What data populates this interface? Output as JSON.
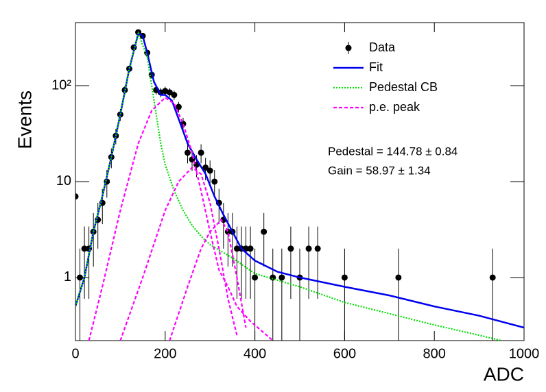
{
  "chart_data": {
    "type": "line",
    "x_label": "ADC",
    "y_label": "Events",
    "log_y": true,
    "xlim": [
      0,
      1000
    ],
    "ylim": [
      0.22,
      454
    ],
    "xticks": [
      0,
      200,
      400,
      600,
      800,
      1000
    ],
    "yticks": [
      1,
      10,
      {
        "value": 100,
        "label": "10²"
      }
    ],
    "annotations": [
      "Pedestal = 144.78 ± 0.84",
      "Gain = 58.97 ± 1.34"
    ],
    "series": [
      {
        "name": "Data",
        "color": "#000000",
        "style": "markers",
        "x": [
          0,
          10,
          20,
          30,
          40,
          50,
          60,
          70,
          80,
          90,
          100,
          110,
          120,
          130,
          140,
          150,
          160,
          170,
          180,
          190,
          200,
          210,
          220,
          230,
          240,
          250,
          260,
          270,
          280,
          290,
          300,
          310,
          320,
          330,
          340,
          350,
          360,
          370,
          380,
          390,
          400,
          420,
          440,
          460,
          480,
          500,
          520,
          540,
          600,
          720,
          930
        ],
        "values": [
          7,
          1,
          2,
          2,
          3,
          4,
          6,
          10,
          18,
          30,
          50,
          90,
          150,
          250,
          360,
          330,
          220,
          130,
          90,
          85,
          88,
          85,
          80,
          60,
          40,
          20,
          17,
          15,
          20,
          14,
          13,
          10,
          6,
          4,
          3,
          3,
          2,
          2,
          2,
          2,
          1,
          3,
          1,
          1,
          2,
          1,
          2,
          2,
          1,
          1,
          1
        ],
        "errors": [
          2.6,
          1,
          1.4,
          1.4,
          1.7,
          2,
          2.4,
          3.2,
          4.2,
          5.5,
          7.1,
          9.5,
          12.2,
          15.8,
          19,
          18.2,
          14.8,
          11.4,
          9.5,
          9.2,
          9.4,
          9.2,
          8.9,
          7.7,
          6.3,
          4.5,
          4.1,
          3.9,
          4.5,
          3.7,
          3.6,
          3.2,
          2.4,
          2,
          1.7,
          1.7,
          1.4,
          1.4,
          1.4,
          1.4,
          1,
          1.7,
          1,
          1,
          1.4,
          1,
          1.4,
          1.4,
          1,
          1,
          1
        ]
      },
      {
        "name": "Fit",
        "color": "#0000ee",
        "style": "solid",
        "x": [
          0,
          20,
          40,
          60,
          80,
          100,
          120,
          140,
          150,
          160,
          175,
          190,
          200,
          215,
          230,
          250,
          270,
          290,
          310,
          330,
          350,
          370,
          400,
          450,
          500,
          600,
          700,
          800,
          900,
          1000
        ],
        "values": [
          0.5,
          1,
          3,
          7,
          18,
          50,
          150,
          350,
          330,
          220,
          110,
          80,
          80,
          70,
          45,
          25,
          17,
          12,
          7,
          4.5,
          3,
          2,
          1.5,
          1.15,
          1.0,
          0.8,
          0.65,
          0.5,
          0.4,
          0.3
        ]
      },
      {
        "name": "Pedestal CB",
        "color": "#00dd00",
        "style": "dotted",
        "x": [
          0,
          20,
          40,
          60,
          80,
          100,
          120,
          140,
          160,
          170,
          180,
          190,
          200,
          220,
          240,
          260,
          280,
          300,
          350,
          400,
          500,
          600,
          700,
          800,
          900,
          950
        ],
        "values": [
          0.5,
          1,
          3,
          7,
          18,
          50,
          150,
          350,
          200,
          100,
          50,
          25,
          15,
          8,
          5,
          3.5,
          2.7,
          2.2,
          1.6,
          1.1,
          0.8,
          0.55,
          0.42,
          0.32,
          0.25,
          0.22
        ]
      },
      {
        "name": "p.e. peak",
        "color": "#ff00ff",
        "style": "dashed",
        "x": [
          30,
          60,
          100,
          140,
          170,
          200,
          220,
          240,
          260,
          280,
          300,
          320,
          340,
          360,
          390,
          440,
          null,
          100,
          150,
          200,
          230,
          260,
          280,
          300,
          320,
          340,
          360,
          null,
          210,
          250,
          280,
          300,
          325,
          340,
          360,
          380
        ],
        "values": [
          0.22,
          0.8,
          5,
          25,
          55,
          75,
          65,
          40,
          20,
          8,
          3,
          1.2,
          0.8,
          0.5,
          0.35,
          0.22,
          null,
          0.22,
          1,
          5,
          10,
          14,
          12,
          6,
          2,
          0.6,
          0.25,
          null,
          0.22,
          0.8,
          2,
          3,
          4,
          3,
          1,
          0.3
        ]
      }
    ]
  }
}
